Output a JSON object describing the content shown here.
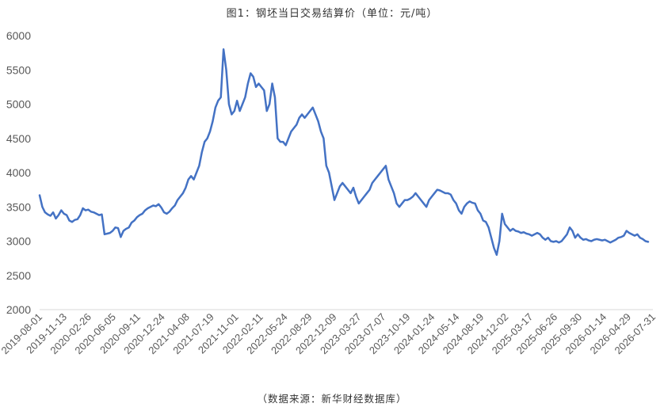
{
  "chart_data": {
    "type": "line",
    "title": "图1：钢坯当日交易结算价（单位：元/吨）",
    "source": "（数据来源：新华财经数据库）",
    "xlabel": "",
    "ylabel": "",
    "ylim": [
      2000,
      6000
    ],
    "yticks": [
      "2000",
      "2500",
      "3000",
      "3500",
      "4000",
      "4500",
      "5000",
      "5500",
      "6000"
    ],
    "xticks": [
      "2019-08-01",
      "2019-11-13",
      "2020-02-26",
      "2020-06-05",
      "2020-09-11",
      "2020-12-24",
      "2021-04-08",
      "2021-07-19",
      "2021-11-01",
      "2022-02-11",
      "2022-05-24",
      "2022-08-29",
      "2022-12-09",
      "2023-03-27",
      "2023-07-07",
      "2023-10-19",
      "2024-01-24",
      "2024-05-14",
      "2024-08-19",
      "2024-12-02",
      "2025-03-17",
      "2025-06-26",
      "2025-09-30",
      "2026-01-14",
      "2026-04-29",
      "2026-07-31"
    ],
    "grid": false,
    "legend": "none",
    "series": [
      {
        "name": "",
        "color": "#4472C4",
        "values": [
          3670,
          3500,
          3420,
          3390,
          3370,
          3420,
          3330,
          3380,
          3450,
          3400,
          3380,
          3300,
          3280,
          3310,
          3320,
          3380,
          3480,
          3450,
          3460,
          3430,
          3420,
          3400,
          3380,
          3390,
          3100,
          3110,
          3120,
          3150,
          3200,
          3190,
          3060,
          3150,
          3180,
          3200,
          3270,
          3300,
          3350,
          3380,
          3400,
          3450,
          3480,
          3500,
          3520,
          3510,
          3540,
          3490,
          3420,
          3400,
          3430,
          3480,
          3520,
          3600,
          3650,
          3700,
          3780,
          3900,
          3950,
          3900,
          4000,
          4100,
          4300,
          4450,
          4500,
          4600,
          4750,
          4950,
          5050,
          5100,
          5800,
          5500,
          5000,
          4850,
          4900,
          5050,
          4900,
          5000,
          5100,
          5300,
          5450,
          5400,
          5250,
          5300,
          5250,
          5200,
          4900,
          5000,
          5300,
          5100,
          4500,
          4450,
          4450,
          4400,
          4500,
          4600,
          4650,
          4700,
          4800,
          4850,
          4800,
          4850,
          4900,
          4950,
          4850,
          4750,
          4600,
          4500,
          4100,
          4000,
          3800,
          3600,
          3700,
          3800,
          3850,
          3800,
          3750,
          3700,
          3780,
          3650,
          3550,
          3600,
          3650,
          3700,
          3750,
          3850,
          3900,
          3950,
          4000,
          4050,
          4100,
          3900,
          3800,
          3700,
          3550,
          3500,
          3550,
          3600,
          3600,
          3620,
          3650,
          3700,
          3650,
          3600,
          3550,
          3500,
          3600,
          3650,
          3700,
          3750,
          3740,
          3720,
          3700,
          3700,
          3680,
          3600,
          3550,
          3450,
          3400,
          3500,
          3550,
          3580,
          3560,
          3550,
          3450,
          3400,
          3300,
          3280,
          3200,
          3050,
          2900,
          2800,
          3000,
          3400,
          3250,
          3200,
          3150,
          3180,
          3150,
          3140,
          3120,
          3130,
          3110,
          3100,
          3080,
          3100,
          3120,
          3100,
          3050,
          3020,
          3050,
          3000,
          2990,
          3000,
          2980,
          3000,
          3050,
          3100,
          3200,
          3150,
          3050,
          3100,
          3050,
          3020,
          3030,
          3010,
          3000,
          3020,
          3030,
          3020,
          3010,
          3020,
          3000,
          2980,
          3000,
          3020,
          3050,
          3060,
          3080,
          3150,
          3120,
          3100,
          3080,
          3100,
          3050,
          3030,
          3000,
          2990
        ]
      }
    ]
  }
}
